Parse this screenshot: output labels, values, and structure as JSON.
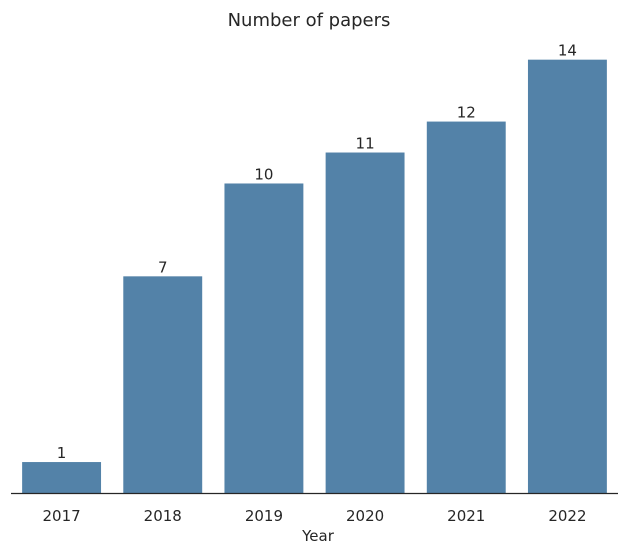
{
  "chart_data": {
    "type": "bar",
    "title": "Number of papers",
    "xlabel": "Year",
    "ylabel": "",
    "categories": [
      "2017",
      "2018",
      "2019",
      "2020",
      "2021",
      "2022"
    ],
    "values": [
      1,
      7,
      10,
      11,
      12,
      14
    ],
    "data_labels": [
      "1",
      "7",
      "10",
      "11",
      "12",
      "14"
    ],
    "ylim": [
      0,
      14.7
    ],
    "grid": false,
    "legend": "none",
    "bar_color": "#5382a8",
    "axis_color": "#262626"
  }
}
